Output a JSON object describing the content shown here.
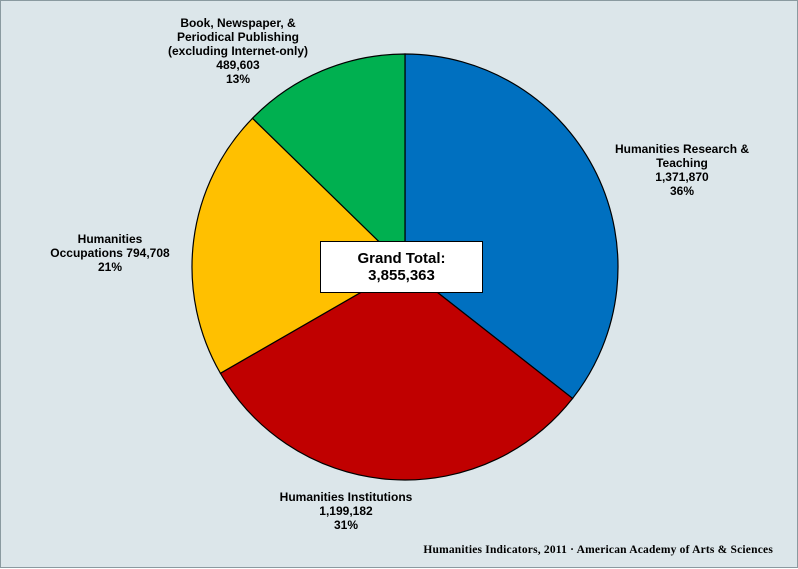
{
  "chart_data": {
    "type": "pie",
    "total_label": "Grand Total:",
    "total_value": "3,855,363",
    "slices": [
      {
        "label_lines": [
          "Humanities Research &",
          "Teaching"
        ],
        "value": 1371870,
        "value_text": "1,371,870",
        "percent_text": "36%",
        "color": "#0070C0"
      },
      {
        "label_lines": [
          "Humanities Institutions"
        ],
        "value": 1199182,
        "value_text": "1,199,182",
        "percent_text": "31%",
        "color": "#C00000"
      },
      {
        "label_lines": [
          "Humanities"
        ],
        "value": 794708,
        "value_text": "Occupations 794,708",
        "percent_text": "21%",
        "color": "#FFC000"
      },
      {
        "label_lines": [
          "Book, Newspaper, &",
          "Periodical Publishing",
          "(excluding Internet-only)"
        ],
        "value": 489603,
        "value_text": "489,603",
        "percent_text": "13%",
        "color": "#00B050"
      }
    ],
    "start_angle_deg": 0,
    "direction": "clockwise"
  },
  "source_note": "Humanities Indicators, 2011 · American Academy of Arts & Sciences"
}
